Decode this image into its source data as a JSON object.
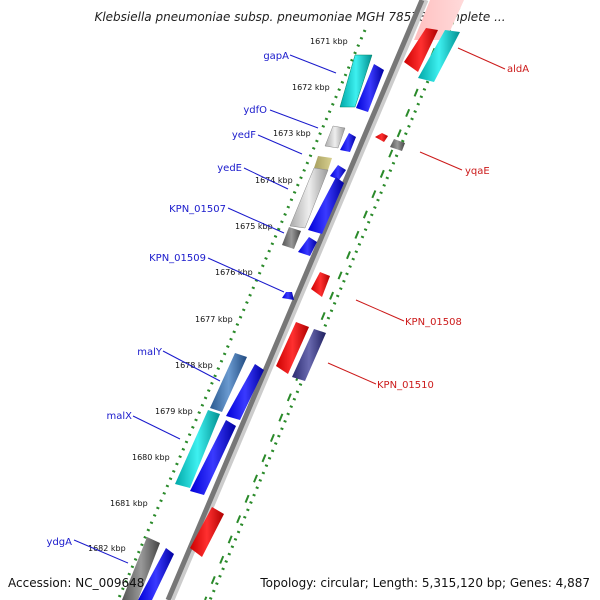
{
  "title": "Klebsiella pneumoniae subsp. pneumoniae MGH 78578, complete ...",
  "footer": {
    "accession": "Accession: NC_009648",
    "summary": "Topology: circular; Length: 5,315,120 bp; Genes: 4,887"
  },
  "ticks": [
    "1671 kbp",
    "1672 kbp",
    "1673 kbp",
    "1674 kbp",
    "1675 kbp",
    "1676 kbp",
    "1677 kbp",
    "1678 kbp",
    "1679 kbp",
    "1680 kbp",
    "1681 kbp",
    "1682 kbp"
  ],
  "left_labels": [
    "gapA",
    "ydfO",
    "yedF",
    "yedE",
    "KPN_01507",
    "KPN_01509",
    "malY",
    "malX",
    "ydgA"
  ],
  "right_labels": [
    "aldA",
    "yqaE",
    "KPN_01508",
    "KPN_01510"
  ],
  "colors": {
    "forward_label": "#1a1acc",
    "reverse_label": "#cc1a1a",
    "backbone": "#888888",
    "dots": "#2a8a2a"
  }
}
